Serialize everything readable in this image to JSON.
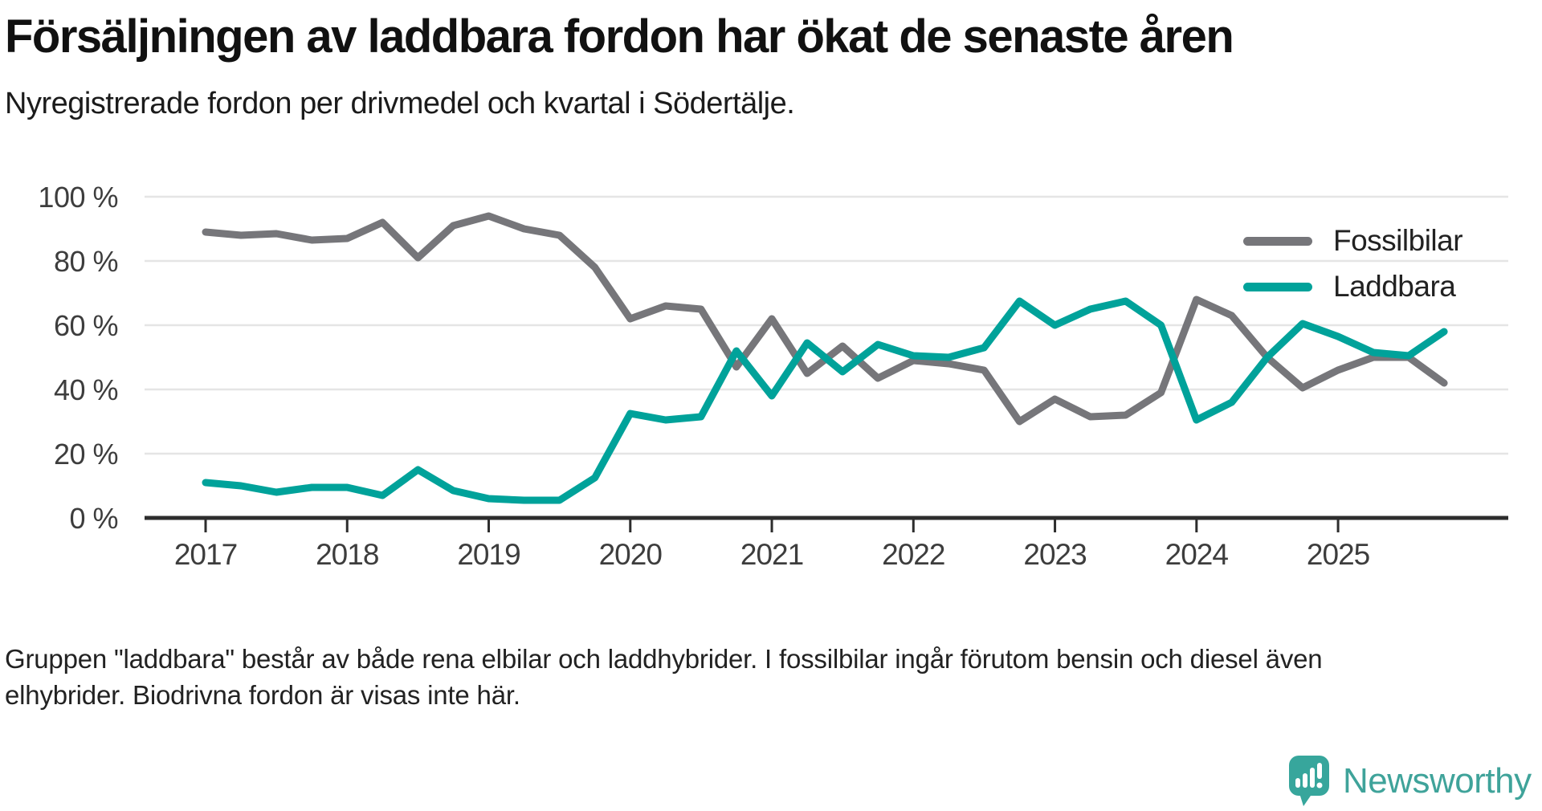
{
  "header": {
    "title": "Försäljningen av laddbara fordon har ökat de senaste åren",
    "subtitle": "Nyregistrerade fordon per drivmedel och kvartal i Södertälje."
  },
  "chart_data": {
    "type": "line",
    "title": "Försäljningen av laddbara fordon har ökat de senaste åren",
    "subtitle": "Nyregistrerade fordon per drivmedel och kvartal i Södertälje.",
    "x_unit": "quarter",
    "grid": "horizontal",
    "legend_position": "top-right",
    "ylim": [
      0,
      100
    ],
    "y_axis": {
      "ticks": [
        "0 %",
        "20 %",
        "40 %",
        "60 %",
        "80 %",
        "100 %"
      ],
      "tick_values": [
        0,
        20,
        40,
        60,
        80,
        100
      ]
    },
    "x_ticks": [
      "2017",
      "2018",
      "2019",
      "2020",
      "2021",
      "2022",
      "2023",
      "2024",
      "2025"
    ],
    "categories": [
      "2017-Q1",
      "2017-Q2",
      "2017-Q3",
      "2017-Q4",
      "2018-Q1",
      "2018-Q2",
      "2018-Q3",
      "2018-Q4",
      "2019-Q1",
      "2019-Q2",
      "2019-Q3",
      "2019-Q4",
      "2020-Q1",
      "2020-Q2",
      "2020-Q3",
      "2020-Q4",
      "2021-Q1",
      "2021-Q2",
      "2021-Q3",
      "2021-Q4",
      "2022-Q1",
      "2022-Q2",
      "2022-Q3",
      "2022-Q4",
      "2023-Q1",
      "2023-Q2",
      "2023-Q3",
      "2023-Q4",
      "2024-Q1",
      "2024-Q2",
      "2024-Q3",
      "2024-Q4",
      "2025-Q1",
      "2025-Q2",
      "2025-Q3",
      "2025-Q4"
    ],
    "series": [
      {
        "name": "Fossilbilar",
        "color": "#76767a",
        "values": [
          89,
          88,
          88.5,
          86.5,
          87,
          92,
          81,
          91,
          94,
          90,
          88,
          78,
          62,
          66,
          65,
          47,
          62,
          45,
          53.5,
          43.5,
          49,
          48,
          46,
          30,
          37,
          31.5,
          32,
          39,
          68,
          63,
          50,
          40.5,
          46,
          50,
          50,
          42
        ]
      },
      {
        "name": "Laddbara",
        "color": "#00a29a",
        "values": [
          11,
          10,
          8,
          9.5,
          9.5,
          7,
          15,
          8.5,
          6,
          5.5,
          5.5,
          12.5,
          32.5,
          30.5,
          31.5,
          52,
          38,
          54.5,
          45.5,
          54,
          50.5,
          50,
          53,
          67.5,
          60,
          65,
          67.5,
          60,
          30.5,
          36,
          50,
          60.5,
          56.5,
          51.5,
          50.5,
          58
        ]
      }
    ],
    "colors": {
      "axis": "#2d2d2d",
      "gridline": "#e5e5e5",
      "tick_label": "#3d3d3d"
    }
  },
  "footer": {
    "line1": "Gruppen \"laddbara\" består av både rena elbilar och laddhybrider. I fossilbilar ingår förutom bensin och diesel även",
    "line2": "elhybrider. Biodrivna fordon är visas inte här."
  },
  "branding": {
    "logo_text": "Newsworthy",
    "logo_color": "#3fa39a",
    "logo_mark_color": "#37a69c"
  }
}
